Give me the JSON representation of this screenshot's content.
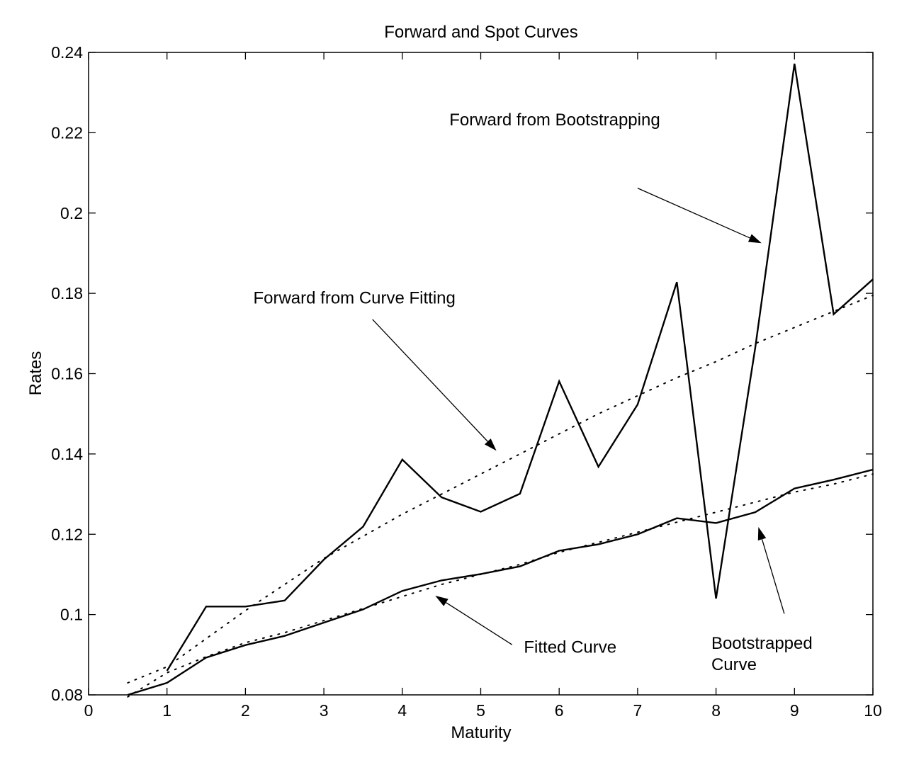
{
  "chart_data": {
    "type": "line",
    "title": "Forward and Spot Curves",
    "xlabel": "Maturity",
    "ylabel": "Rates",
    "xlim": [
      0,
      10
    ],
    "ylim": [
      0.08,
      0.24
    ],
    "x_ticks": [
      "0",
      "1",
      "2",
      "3",
      "4",
      "5",
      "6",
      "7",
      "8",
      "9",
      "10"
    ],
    "y_ticks": [
      "0.08",
      "0.1",
      "0.12",
      "0.14",
      "0.16",
      "0.18",
      "0.2",
      "0.22",
      "0.24"
    ],
    "grid": false,
    "series": [
      {
        "name": "Forward from Bootstrapping",
        "style": "solid",
        "x": [
          1,
          1.5,
          2,
          2.5,
          3,
          3.5,
          4,
          4.5,
          5,
          5.5,
          6,
          6.5,
          7,
          7.5,
          8,
          8.5,
          9,
          9.5,
          10
        ],
        "y": [
          0.086,
          0.102,
          0.102,
          0.1035,
          0.1137,
          0.1219,
          0.1386,
          0.1292,
          0.1256,
          0.1301,
          0.1581,
          0.1368,
          0.1523,
          0.1828,
          0.104,
          0.1664,
          0.2372,
          0.1748,
          0.1835
        ]
      },
      {
        "name": "Forward from Curve Fitting",
        "style": "dotted",
        "x": [
          0.5,
          1,
          1.5,
          2,
          2.5,
          3,
          3.5,
          4,
          4.5,
          5,
          5.5,
          6,
          6.5,
          7,
          7.5,
          8,
          8.5,
          9,
          9.5,
          10
        ],
        "y": [
          0.083,
          0.087,
          0.094,
          0.101,
          0.1075,
          0.114,
          0.1195,
          0.125,
          0.13,
          0.135,
          0.14,
          0.145,
          0.15,
          0.1545,
          0.159,
          0.163,
          0.1675,
          0.1715,
          0.1755,
          0.1795
        ]
      },
      {
        "name": "Bootstrapped Curve",
        "style": "solid",
        "x": [
          0.5,
          1,
          1.5,
          2,
          2.5,
          3,
          3.5,
          4,
          4.5,
          5,
          5.5,
          6,
          6.5,
          7,
          7.5,
          8,
          8.5,
          9,
          9.5,
          10
        ],
        "y": [
          0.08,
          0.083,
          0.0893,
          0.0924,
          0.0947,
          0.098,
          0.1013,
          0.1059,
          0.1085,
          0.1101,
          0.112,
          0.1159,
          0.1175,
          0.12,
          0.124,
          0.1228,
          0.1255,
          0.1314,
          0.1336,
          0.1361
        ]
      },
      {
        "name": "Fitted Curve",
        "style": "dotted",
        "x": [
          0.5,
          1,
          1.5,
          2,
          2.5,
          3,
          3.5,
          4,
          4.5,
          5,
          5.5,
          6,
          6.5,
          7,
          7.5,
          8,
          8.5,
          9,
          9.5,
          10
        ],
        "y": [
          0.0795,
          0.0855,
          0.0895,
          0.093,
          0.0955,
          0.0985,
          0.1015,
          0.1045,
          0.1075,
          0.11,
          0.1125,
          0.1155,
          0.118,
          0.1205,
          0.123,
          0.1255,
          0.128,
          0.1305,
          0.1325,
          0.135
        ]
      }
    ],
    "annotations": [
      {
        "text": "Forward from Bootstrapping",
        "text_at": [
          4.6,
          0.2218
        ],
        "arrow_from": [
          7.0,
          0.2062
        ],
        "arrow_to": [
          8.58,
          0.1925
        ]
      },
      {
        "text": "Forward from Curve Fitting",
        "text_at": [
          2.1,
          0.1775
        ],
        "arrow_from": [
          3.62,
          0.1735
        ],
        "arrow_to": [
          5.2,
          0.1408
        ]
      },
      {
        "text": "Fitted Curve",
        "text_at": [
          5.55,
          0.0905
        ],
        "arrow_from": [
          5.4,
          0.0925
        ],
        "arrow_to": [
          4.42,
          0.1047
        ]
      },
      {
        "text": "Bootstrapped",
        "text_at": [
          7.94,
          0.0915
        ],
        "arrow_from": [
          8.87,
          0.1002
        ],
        "arrow_to": [
          8.54,
          0.1218
        ]
      },
      {
        "text": "Curve",
        "text_at": [
          7.94,
          0.0862
        ]
      }
    ]
  }
}
